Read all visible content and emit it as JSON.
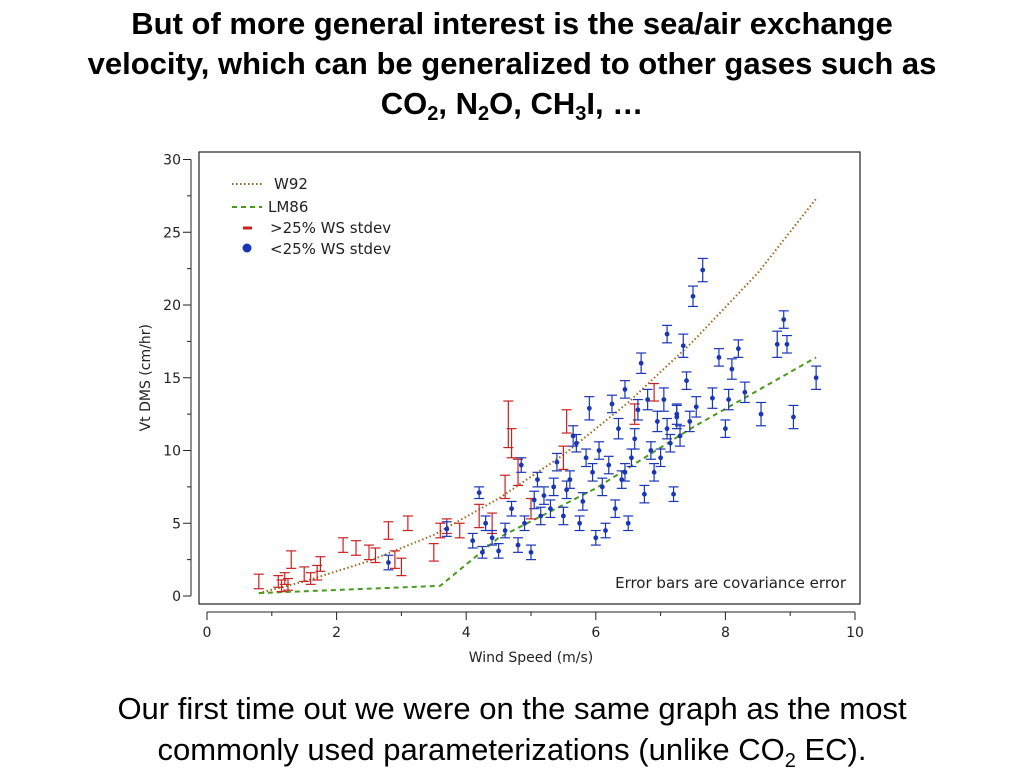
{
  "slide": {
    "title_line1": "But of more general interest is the sea/air exchange",
    "title_line2": "velocity, which can be generalized to other gases such as",
    "title_line3": {
      "p1": "CO",
      "s1": "2",
      "p2": ", N",
      "s2": "2",
      "p3": "O, CH",
      "s3": "3",
      "p4": "I, …"
    },
    "footer_line1": "Our first time out we were on the same graph as the most",
    "footer_line2": {
      "p1": "commonly used parameterizations (unlike CO",
      "s1": "2",
      "p2": " EC)."
    }
  },
  "chart_data": {
    "type": "scatter",
    "xlabel": "Wind Speed (m/s)",
    "ylabel": "Vt DMS (cm/hr)",
    "xlim": [
      0,
      10
    ],
    "ylim": [
      0,
      30
    ],
    "xticks": [
      0,
      2,
      4,
      6,
      8,
      10
    ],
    "yticks": [
      0,
      5,
      10,
      15,
      20,
      25,
      30
    ],
    "grid": false,
    "legend_position": "top-left",
    "annotation": "Error bars are covariance error",
    "colors": {
      "W92": "#9c6a1e",
      "LM86": "#4a9a1e",
      "high_stdev": "#cc2020",
      "low_stdev": "#1a36b8"
    },
    "series": [
      {
        "name": "W92",
        "kind": "dotted-line",
        "x": [
          0.8,
          1.5,
          2.5,
          3.5,
          4.5,
          5.5,
          6.5,
          7.5,
          8.5,
          9.4
        ],
        "y": [
          0.2,
          1.0,
          2.4,
          4.2,
          6.7,
          9.7,
          13.3,
          17.5,
          22.2,
          27.3
        ]
      },
      {
        "name": "LM86",
        "kind": "dashed-line",
        "x": [
          0.8,
          3.6,
          4.5,
          6.0,
          7.5,
          9.4
        ],
        "y": [
          0.2,
          0.7,
          4.0,
          7.4,
          11.6,
          16.4
        ]
      },
      {
        "name": ">25% WS stdev",
        "kind": "errorbar",
        "points": [
          [
            0.8,
            1.0,
            0.5
          ],
          [
            1.1,
            1.0,
            0.4
          ],
          [
            1.15,
            0.7,
            0.4
          ],
          [
            1.2,
            1.2,
            0.4
          ],
          [
            1.25,
            0.8,
            0.4
          ],
          [
            1.3,
            2.5,
            0.6
          ],
          [
            1.5,
            1.5,
            0.5
          ],
          [
            1.6,
            1.2,
            0.4
          ],
          [
            1.7,
            1.6,
            0.5
          ],
          [
            1.75,
            2.2,
            0.5
          ],
          [
            2.1,
            3.5,
            0.5
          ],
          [
            2.3,
            3.3,
            0.5
          ],
          [
            2.5,
            3.0,
            0.5
          ],
          [
            2.6,
            2.8,
            0.5
          ],
          [
            2.8,
            4.5,
            0.6
          ],
          [
            2.9,
            2.5,
            0.6
          ],
          [
            3.0,
            2.0,
            0.6
          ],
          [
            3.1,
            5.0,
            0.5
          ],
          [
            3.5,
            3.0,
            0.6
          ],
          [
            3.6,
            4.5,
            0.5
          ],
          [
            3.7,
            4.8,
            0.5
          ],
          [
            3.9,
            4.5,
            0.5
          ],
          [
            4.2,
            5.5,
            0.8
          ],
          [
            4.4,
            5.0,
            0.7
          ],
          [
            4.6,
            7.5,
            0.8
          ],
          [
            4.65,
            11.8,
            1.6
          ],
          [
            4.7,
            10.5,
            1.0
          ],
          [
            4.8,
            8.5,
            0.9
          ],
          [
            5.0,
            6.0,
            0.7
          ],
          [
            5.5,
            9.5,
            0.8
          ],
          [
            5.55,
            12.0,
            0.8
          ],
          [
            6.6,
            12.5,
            0.7
          ],
          [
            6.9,
            14.0,
            0.6
          ]
        ]
      },
      {
        "name": "<25% WS stdev",
        "kind": "errorbar",
        "points": [
          [
            2.8,
            2.3,
            0.5
          ],
          [
            3.7,
            4.6,
            0.5
          ],
          [
            4.1,
            3.8,
            0.5
          ],
          [
            4.2,
            7.1,
            0.4
          ],
          [
            4.25,
            3.0,
            0.4
          ],
          [
            4.3,
            5.0,
            0.5
          ],
          [
            4.4,
            4.0,
            0.5
          ],
          [
            4.5,
            3.1,
            0.5
          ],
          [
            4.6,
            4.5,
            0.5
          ],
          [
            4.7,
            6.0,
            0.5
          ],
          [
            4.8,
            3.5,
            0.5
          ],
          [
            4.85,
            9.0,
            0.5
          ],
          [
            4.9,
            5.0,
            0.5
          ],
          [
            5.0,
            3.0,
            0.5
          ],
          [
            5.05,
            6.6,
            0.6
          ],
          [
            5.1,
            8.0,
            0.5
          ],
          [
            5.15,
            5.5,
            0.6
          ],
          [
            5.2,
            6.9,
            0.6
          ],
          [
            5.3,
            6.0,
            0.6
          ],
          [
            5.35,
            7.5,
            0.6
          ],
          [
            5.4,
            9.2,
            0.6
          ],
          [
            5.5,
            5.5,
            0.6
          ],
          [
            5.55,
            7.3,
            0.6
          ],
          [
            5.6,
            8.0,
            0.6
          ],
          [
            5.7,
            10.5,
            0.6
          ],
          [
            5.75,
            5.0,
            0.5
          ],
          [
            5.8,
            6.5,
            0.6
          ],
          [
            5.85,
            9.5,
            0.6
          ],
          [
            5.9,
            12.9,
            0.8
          ],
          [
            5.95,
            8.5,
            0.6
          ],
          [
            6.0,
            4.0,
            0.5
          ],
          [
            6.05,
            10.0,
            0.6
          ],
          [
            6.1,
            7.5,
            0.6
          ],
          [
            6.15,
            4.5,
            0.5
          ],
          [
            6.2,
            9.0,
            0.6
          ],
          [
            6.3,
            6.0,
            0.6
          ],
          [
            6.35,
            11.5,
            0.7
          ],
          [
            6.4,
            8.0,
            0.6
          ],
          [
            6.45,
            14.2,
            0.6
          ],
          [
            6.5,
            5.0,
            0.5
          ],
          [
            6.55,
            9.5,
            0.6
          ],
          [
            6.6,
            10.8,
            0.7
          ],
          [
            6.65,
            12.8,
            0.7
          ],
          [
            6.7,
            16.0,
            0.7
          ],
          [
            6.75,
            7.0,
            0.6
          ],
          [
            6.8,
            13.5,
            0.7
          ],
          [
            6.85,
            10.0,
            0.6
          ],
          [
            6.9,
            8.5,
            0.6
          ],
          [
            6.95,
            12.0,
            0.7
          ],
          [
            7.0,
            9.5,
            0.6
          ],
          [
            7.05,
            13.5,
            0.8
          ],
          [
            7.1,
            11.5,
            0.7
          ],
          [
            7.15,
            10.5,
            0.6
          ],
          [
            7.2,
            7.0,
            0.5
          ],
          [
            7.25,
            12.5,
            0.7
          ],
          [
            7.3,
            11.0,
            0.7
          ],
          [
            7.35,
            17.2,
            0.8
          ],
          [
            7.4,
            14.8,
            0.6
          ],
          [
            7.45,
            12.0,
            0.7
          ],
          [
            7.5,
            20.6,
            0.7
          ],
          [
            7.55,
            13.0,
            0.7
          ],
          [
            7.65,
            22.4,
            0.8
          ],
          [
            7.8,
            13.6,
            0.7
          ],
          [
            7.9,
            16.4,
            0.6
          ],
          [
            8.0,
            11.5,
            0.6
          ],
          [
            8.1,
            15.6,
            0.7
          ],
          [
            8.2,
            17.0,
            0.6
          ],
          [
            8.3,
            14.0,
            0.7
          ],
          [
            8.55,
            12.5,
            0.8
          ],
          [
            8.8,
            17.3,
            0.9
          ],
          [
            8.9,
            19.0,
            0.6
          ],
          [
            8.95,
            17.3,
            0.6
          ],
          [
            9.05,
            12.3,
            0.8
          ],
          [
            9.4,
            15.0,
            0.8
          ],
          [
            7.1,
            18.0,
            0.6
          ],
          [
            7.25,
            12.3,
            0.8
          ],
          [
            6.45,
            8.5,
            0.6
          ],
          [
            5.65,
            11.0,
            0.7
          ],
          [
            6.25,
            13.2,
            0.6
          ],
          [
            8.05,
            13.5,
            0.7
          ]
        ]
      }
    ]
  }
}
